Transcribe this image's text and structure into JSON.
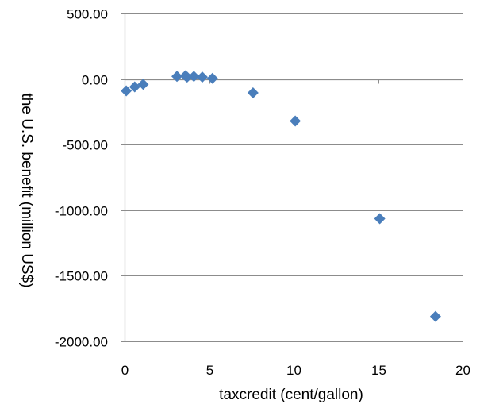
{
  "chart_data": {
    "type": "scatter",
    "title": "",
    "xlabel": "taxcredit (cent/gallon)",
    "ylabel": "the U.S. benefit (million US$)",
    "xlim": [
      0,
      20
    ],
    "ylim": [
      -2000,
      500
    ],
    "x_ticks": [
      0,
      5,
      10,
      15,
      20
    ],
    "x_tick_labels": [
      "0",
      "5",
      "10",
      "15",
      "20"
    ],
    "y_ticks": [
      500,
      0,
      -500,
      -1000,
      -1500,
      -2000
    ],
    "y_tick_labels": [
      "500.00",
      "0.00",
      "-500.00",
      "-1000.00",
      "-1500.00",
      "-2000.00"
    ],
    "grid": "horizontal",
    "legend": "none",
    "marker": "diamond",
    "colors": {
      "marker": "#4a7ebb",
      "grid": "#8c8c8c",
      "axis": "#8c8c8c"
    },
    "series": [
      {
        "points": [
          {
            "x": 0.1,
            "y": -90
          },
          {
            "x": 0.6,
            "y": -60
          },
          {
            "x": 1.1,
            "y": -40
          },
          {
            "x": 3.1,
            "y": 20
          },
          {
            "x": 3.6,
            "y": 25
          },
          {
            "x": 3.7,
            "y": 15
          },
          {
            "x": 4.1,
            "y": 20
          },
          {
            "x": 4.6,
            "y": 15
          },
          {
            "x": 5.2,
            "y": 5
          },
          {
            "x": 7.6,
            "y": -105
          },
          {
            "x": 10.1,
            "y": -320
          },
          {
            "x": 15.1,
            "y": -1065
          },
          {
            "x": 18.4,
            "y": -1810
          }
        ]
      }
    ]
  }
}
